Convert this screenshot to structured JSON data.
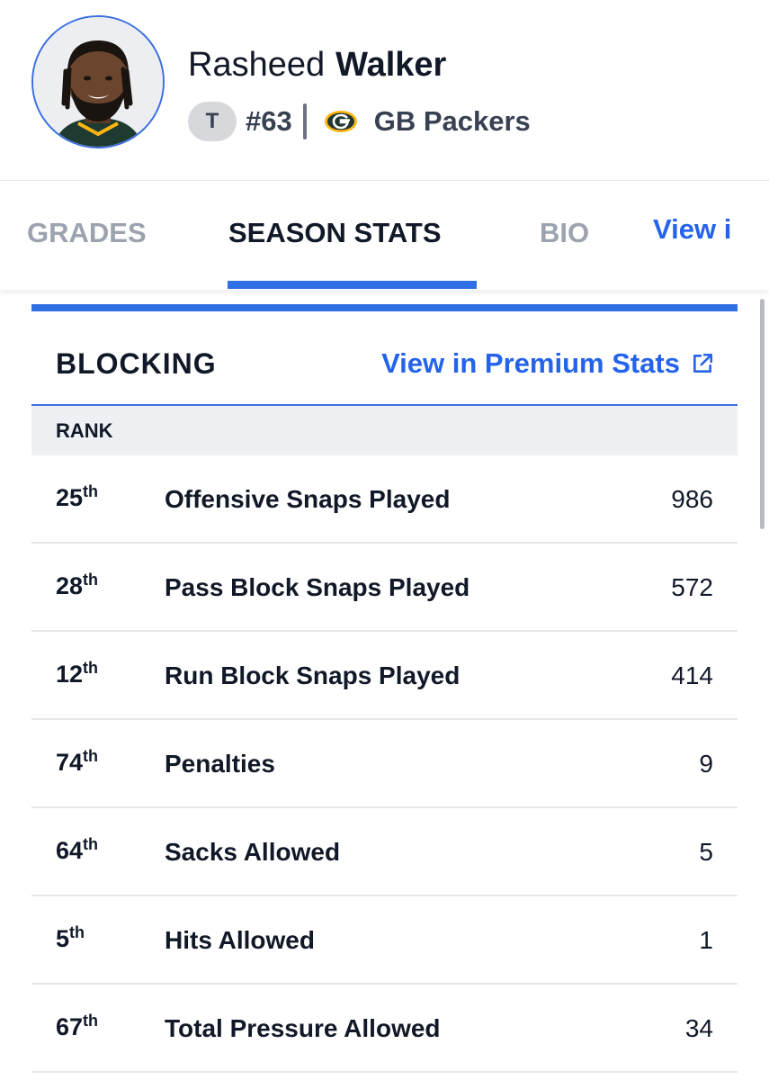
{
  "player": {
    "first_name": "Rasheed",
    "last_name": "Walker",
    "position": "T",
    "jersey": "#63",
    "team": "GB Packers",
    "team_logo_icon": "packers-g-icon",
    "photo_icon": "player-headshot"
  },
  "tabs": [
    {
      "label": "GRADES",
      "active": false
    },
    {
      "label": "SEASON STATS",
      "active": true
    },
    {
      "label": "BIO",
      "active": false
    },
    {
      "label": "View i",
      "active": false
    }
  ],
  "section": {
    "title": "BLOCKING",
    "link_label": "View in Premium Stats",
    "link_icon": "external-link-icon",
    "rank_header": "RANK"
  },
  "rows": [
    {
      "rank": "25",
      "suffix": "th",
      "label": "Offensive Snaps Played",
      "value": "986"
    },
    {
      "rank": "28",
      "suffix": "th",
      "label": "Pass Block Snaps Played",
      "value": "572"
    },
    {
      "rank": "12",
      "suffix": "th",
      "label": "Run Block Snaps Played",
      "value": "414"
    },
    {
      "rank": "74",
      "suffix": "th",
      "label": "Penalties",
      "value": "9"
    },
    {
      "rank": "64",
      "suffix": "th",
      "label": "Sacks Allowed",
      "value": "5"
    },
    {
      "rank": "5",
      "suffix": "th",
      "label": "Hits Allowed",
      "value": "1"
    },
    {
      "rank": "67",
      "suffix": "th",
      "label": "Total Pressure Allowed",
      "value": "34"
    }
  ],
  "colors": {
    "accent": "#2f6fe4",
    "link": "#2563eb",
    "packers_green": "#203731",
    "packers_gold": "#FFB612"
  }
}
